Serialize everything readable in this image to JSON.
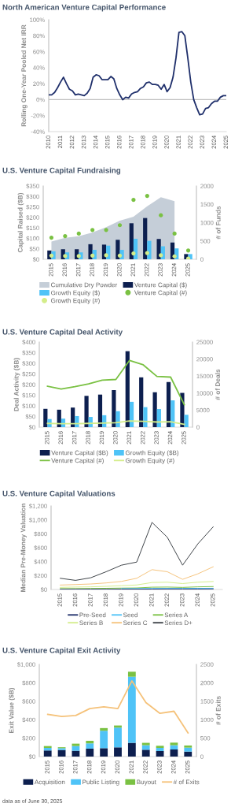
{
  "chart_data": [
    {
      "type": "line",
      "title": "North American Venture Capital Performance",
      "ylabel": "Rolling One-Year Pooled Net IRR",
      "x": [
        2010.0,
        2010.25,
        2010.5,
        2010.75,
        2011.0,
        2011.25,
        2011.5,
        2011.75,
        2012.0,
        2012.25,
        2012.5,
        2012.75,
        2013.0,
        2013.25,
        2013.5,
        2013.75,
        2014.0,
        2014.25,
        2014.5,
        2014.75,
        2015.0,
        2015.25,
        2015.5,
        2015.75,
        2016.0,
        2016.25,
        2016.5,
        2016.75,
        2017.0,
        2017.25,
        2017.5,
        2017.75,
        2018.0,
        2018.25,
        2018.5,
        2018.75,
        2019.0,
        2019.25,
        2019.5,
        2019.75,
        2020.0,
        2020.25,
        2020.5,
        2020.75,
        2021.0,
        2021.25,
        2021.5,
        2021.75,
        2022.0,
        2022.25,
        2022.5,
        2022.75,
        2023.0,
        2023.25,
        2023.5,
        2023.75,
        2024.0,
        2024.25,
        2024.5,
        2024.75,
        2025.0
      ],
      "series": [
        {
          "color": "#1f2f6b",
          "values": [
            6,
            6,
            9,
            15,
            22,
            28,
            20,
            13,
            11,
            6,
            7,
            6,
            5,
            8,
            14,
            28,
            31,
            30,
            25,
            25,
            25,
            29,
            26,
            14,
            6,
            0,
            3,
            2,
            7,
            9,
            10,
            14,
            16,
            21,
            22,
            19,
            19,
            18,
            13,
            19,
            10,
            15,
            28,
            52,
            84,
            85,
            80,
            52,
            22,
            0,
            -10,
            -19,
            -18,
            -11,
            -10,
            -5,
            -2,
            -2,
            3,
            5,
            5
          ]
        }
      ],
      "xlim": [
        2010,
        2025
      ],
      "xticks": [
        2010,
        2011,
        2012,
        2013,
        2014,
        2015,
        2016,
        2017,
        2018,
        2019,
        2020,
        2021,
        2022,
        2023,
        2024,
        2025
      ],
      "ylim": [
        -40,
        100
      ],
      "yticks": [
        {
          "value": -40,
          "label": "-40%"
        },
        {
          "value": -20,
          "label": "-20%"
        },
        {
          "value": 0,
          "label": "0%"
        },
        {
          "value": 20,
          "label": "20%"
        },
        {
          "value": 40,
          "label": "40%"
        },
        {
          "value": 60,
          "label": "60%"
        },
        {
          "value": 80,
          "label": "80%"
        },
        {
          "value": 100,
          "label": "100%"
        }
      ],
      "ref_lines": [
        {
          "axis": "y",
          "value": 0,
          "color": "#bfbfbf"
        }
      ]
    },
    {
      "type": "bar",
      "title": "U.S. Venture Capital Fundraising",
      "ylabel": "Capital Raised ($B)",
      "y2label": "# of Funds",
      "categories": [
        "2015",
        "2016",
        "2017",
        "2018",
        "2019",
        "2020",
        "2021",
        "2022",
        "2023",
        "2024",
        "2025"
      ],
      "series": [
        {
          "name": "Cumulative Dry Powder",
          "type": "area",
          "color": "#c5ced8",
          "values": [
            85,
            103,
            110,
            128,
            153,
            184,
            203,
            253,
            296,
            278,
            null
          ]
        },
        {
          "name": "Venture Capital ($)",
          "type": "bar",
          "color": "#0d1f4f",
          "values": [
            42,
            48,
            48,
            72,
            70,
            93,
            172,
            197,
            97,
            80,
            25
          ]
        },
        {
          "name": "Growth Equity ($)",
          "type": "bar",
          "color": "#4fc3f7",
          "values": [
            38,
            33,
            33,
            45,
            65,
            45,
            98,
            88,
            62,
            52,
            25
          ]
        },
        {
          "name": "Venture Capital (#)",
          "type": "scatter",
          "marker": "circle",
          "axis": "y2",
          "color": "#7ac143",
          "values": [
            590,
            630,
            700,
            800,
            800,
            930,
            1620,
            1730,
            1200,
            700,
            240
          ]
        },
        {
          "name": "Growth Equity (#)",
          "type": "scatter",
          "marker": "circle",
          "axis": "y2",
          "color": "#d4ed8a",
          "values": [
            100,
            90,
            90,
            100,
            110,
            100,
            160,
            170,
            110,
            80,
            20
          ]
        }
      ],
      "ylim": [
        0,
        350
      ],
      "yticks": [
        {
          "value": 0,
          "label": "$0"
        },
        {
          "value": 50,
          "label": "$50"
        },
        {
          "value": 100,
          "label": "$100"
        },
        {
          "value": 150,
          "label": "$150"
        },
        {
          "value": 200,
          "label": "$200"
        },
        {
          "value": 250,
          "label": "$250"
        },
        {
          "value": 300,
          "label": "$300"
        },
        {
          "value": 350,
          "label": "$350"
        }
      ],
      "y2lim": [
        0,
        2000
      ],
      "y2ticks": [
        0,
        500,
        1000,
        1500,
        2000
      ],
      "legend": "bottom"
    },
    {
      "type": "bar",
      "title": "U.S. Venture Capital Deal Activity",
      "ylabel": "Deal Activity ($B)",
      "y2label": "# of Deals",
      "categories": [
        "2015",
        "2016",
        "2017",
        "2018",
        "2019",
        "2020",
        "2021",
        "2022",
        "2023",
        "2024",
        "2025"
      ],
      "series": [
        {
          "name": "Venture Capital ($B)",
          "type": "bar",
          "color": "#0d1f4f",
          "values": [
            86,
            82,
            92,
            147,
            153,
            174,
            357,
            234,
            164,
            212,
            161
          ]
        },
        {
          "name": "Growth Equity ($B)",
          "type": "bar",
          "color": "#4fc3f7",
          "values": [
            38,
            40,
            52,
            48,
            56,
            75,
            119,
            94,
            85,
            126,
            58
          ]
        },
        {
          "name": "Venture Capital (#)",
          "type": "line",
          "axis": "y2",
          "color": "#7ac143",
          "values": [
            12000,
            11200,
            11900,
            12700,
            13800,
            14000,
            19600,
            18300,
            14900,
            14700,
            6600
          ]
        },
        {
          "name": "Growth Equity (#)",
          "type": "line",
          "axis": "y2",
          "color": "#d4ed8a",
          "values": [
            1100,
            1000,
            1000,
            1100,
            1200,
            1300,
            1800,
            1700,
            1500,
            1600,
            800
          ]
        }
      ],
      "ylim": [
        0,
        400
      ],
      "yticks": [
        {
          "value": 0,
          "label": "$0"
        },
        {
          "value": 50,
          "label": "$50"
        },
        {
          "value": 100,
          "label": "$100"
        },
        {
          "value": 150,
          "label": "$150"
        },
        {
          "value": 200,
          "label": "$200"
        },
        {
          "value": 250,
          "label": "$250"
        },
        {
          "value": 300,
          "label": "$300"
        },
        {
          "value": 350,
          "label": "$350"
        },
        {
          "value": 400,
          "label": "$400"
        }
      ],
      "y2lim": [
        0,
        25000
      ],
      "y2ticks": [
        0,
        5000,
        10000,
        15000,
        20000,
        25000
      ],
      "legend": "bottom"
    },
    {
      "type": "line",
      "title": "U.S. Venture Capital Valuations",
      "ylabel": "Median Pre-Money Valuation",
      "categories": [
        "2015",
        "2016",
        "2017",
        "2018",
        "2019",
        "2020",
        "2021",
        "2022",
        "2023",
        "2024",
        "2025"
      ],
      "series": [
        {
          "name": "Pre-Seed",
          "color": "#1f2f6b",
          "values": [
            3,
            3,
            4,
            4,
            5,
            5,
            6,
            7,
            7,
            7,
            8
          ]
        },
        {
          "name": "Seed",
          "color": "#4fc3f7",
          "values": [
            null,
            null,
            null,
            null,
            12,
            13,
            15,
            16,
            16,
            17,
            18
          ]
        },
        {
          "name": "Series A",
          "color": "#7ac143",
          "values": [
            12,
            13,
            15,
            17,
            20,
            22,
            33,
            35,
            30,
            38,
            42
          ]
        },
        {
          "name": "Series B",
          "color": "#d4ed8a",
          "values": [
            30,
            35,
            38,
            45,
            55,
            65,
            100,
            105,
            85,
            105,
            115
          ]
        },
        {
          "name": "Series C",
          "color": "#f5c27a",
          "values": [
            64,
            71,
            79,
            94,
            116,
            161,
            285,
            255,
            146,
            225,
            326
          ]
        },
        {
          "name": "Series D+",
          "color": "#3a3f44",
          "values": [
            161,
            131,
            169,
            255,
            349,
            394,
            964,
            750,
            349,
            656,
            900
          ]
        }
      ],
      "ylim": [
        0,
        1200
      ],
      "yticks": [
        {
          "value": 0,
          "label": "$0"
        },
        {
          "value": 200,
          "label": "$200"
        },
        {
          "value": 400,
          "label": "$400"
        },
        {
          "value": 600,
          "label": "$600"
        },
        {
          "value": 800,
          "label": "$800"
        },
        {
          "value": 1000,
          "label": "$1,000"
        },
        {
          "value": 1200,
          "label": "$1,200"
        }
      ],
      "legend": "bottom"
    },
    {
      "type": "bar",
      "title": "U.S. Venture Capital Exit Activity",
      "ylabel": "Exit Value ($B)",
      "y2label": "# of Exits",
      "stacked": true,
      "categories": [
        "2015",
        "2016",
        "2017",
        "2018",
        "2019",
        "2020",
        "2021",
        "2022",
        "2023",
        "2024",
        "2025"
      ],
      "series": [
        {
          "name": "Acquisition",
          "type": "bar",
          "color": "#0d1f4f",
          "values": [
            66,
            71,
            63,
            86,
            91,
            100,
            149,
            74,
            60,
            77,
            54
          ]
        },
        {
          "name": "Public Listing",
          "type": "bar",
          "color": "#4fc3f7",
          "values": [
            28,
            20,
            51,
            57,
            189,
            214,
            717,
            49,
            34,
            46,
            43
          ]
        },
        {
          "name": "Buyout",
          "type": "bar",
          "color": "#7ac143",
          "values": [
            20,
            10,
            26,
            28,
            29,
            23,
            54,
            26,
            23,
            28,
            23
          ]
        },
        {
          "name": "# of Exits",
          "type": "line",
          "axis": "y2",
          "color": "#f5c27a",
          "values": [
            1143,
            1086,
            1114,
            1300,
            1350,
            1300,
            2050,
            1464,
            1171,
            1229,
            643
          ]
        }
      ],
      "ylim": [
        0,
        1000
      ],
      "yticks": [
        {
          "value": 0,
          "label": "$0"
        },
        {
          "value": 200,
          "label": "$200"
        },
        {
          "value": 400,
          "label": "$400"
        },
        {
          "value": 600,
          "label": "$600"
        },
        {
          "value": 800,
          "label": "$800"
        },
        {
          "value": 1000,
          "label": "$1,000"
        }
      ],
      "y2lim": [
        0,
        2500
      ],
      "y2ticks": [
        0,
        500,
        1000,
        1500,
        2000,
        2500
      ],
      "legend": "bottom",
      "annotations": [
        "data as of June 30, 2025"
      ]
    }
  ]
}
